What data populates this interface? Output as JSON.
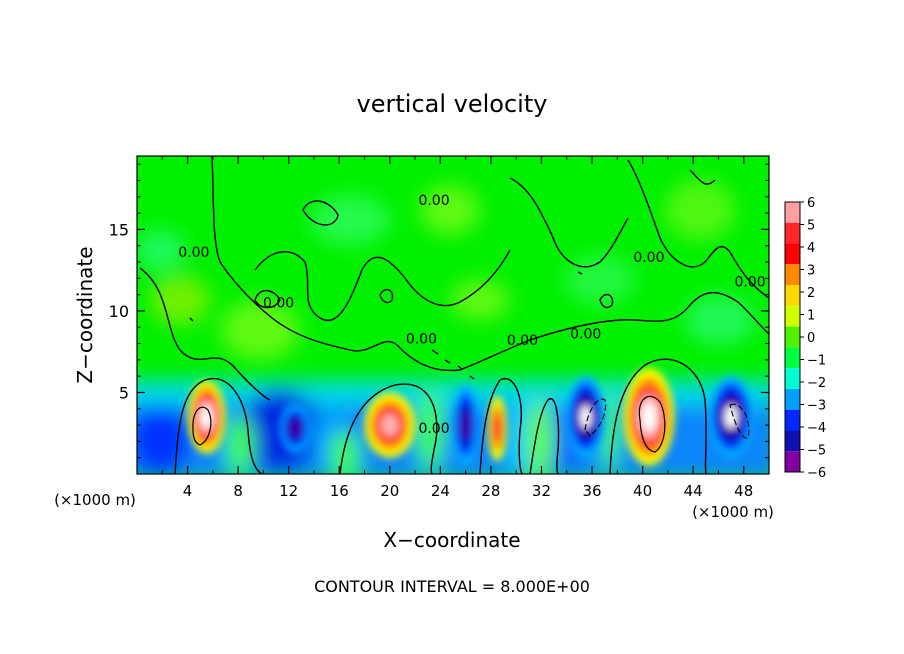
{
  "chart_data": {
    "type": "heatmap",
    "title": "vertical velocity",
    "xlabel": "X−coordinate",
    "ylabel": "Z−coordinate",
    "x_unit_left": "(×1000 m)",
    "x_unit_right": "(×1000 m)",
    "footer": "CONTOUR INTERVAL = 8.000E+00",
    "xlim": [
      0,
      50
    ],
    "ylim": [
      0,
      19.5
    ],
    "x_ticks": [
      "4",
      "8",
      "12",
      "16",
      "20",
      "24",
      "28",
      "32",
      "36",
      "40",
      "44",
      "48"
    ],
    "x_tick_values": [
      4,
      8,
      12,
      16,
      20,
      24,
      28,
      32,
      36,
      40,
      44,
      48
    ],
    "y_ticks": [
      "5",
      "10",
      "15"
    ],
    "y_tick_values": [
      5,
      10,
      15
    ],
    "colorbar": {
      "min": -6,
      "max": 6,
      "labels": [
        "6",
        "5",
        "4",
        "3",
        "2",
        "1",
        "0",
        "−1",
        "−2",
        "−3",
        "−4",
        "−5",
        "−6"
      ],
      "colors": [
        "#ffa0a0",
        "#ff2828",
        "#ff0000",
        "#ff8c00",
        "#ffd700",
        "#d0ff00",
        "#50f000",
        "#00ff40",
        "#00ffd0",
        "#00a0ff",
        "#0028ff",
        "#1010b0",
        "#8000a0"
      ]
    },
    "contour_labels": [
      {
        "text": "0.00",
        "x": 4.5,
        "y": 13.3
      },
      {
        "text": "0.00",
        "x": 11.2,
        "y": 10.2
      },
      {
        "text": "0.00",
        "x": 23.5,
        "y": 16.5
      },
      {
        "text": "0.00",
        "x": 22.5,
        "y": 8.0
      },
      {
        "text": "0.00",
        "x": 30.5,
        "y": 7.9
      },
      {
        "text": "0.00",
        "x": 35.5,
        "y": 8.3
      },
      {
        "text": "0.00",
        "x": 40.5,
        "y": 13.0
      },
      {
        "text": "0.00",
        "x": 48.5,
        "y": 11.5
      },
      {
        "text": "0.00",
        "x": 23.5,
        "y": 2.5
      }
    ],
    "cells": [
      {
        "x": 5.5,
        "z": 3.5,
        "w": 3.0,
        "h": 4.5,
        "value": 6
      },
      {
        "x": 12.5,
        "z": 2.8,
        "w": 2.5,
        "h": 3.0,
        "value": -5
      },
      {
        "x": 20.0,
        "z": 3.0,
        "w": 4.0,
        "h": 4.0,
        "value": 5
      },
      {
        "x": 26.0,
        "z": 3.0,
        "w": 2.0,
        "h": 5.0,
        "value": -5
      },
      {
        "x": 28.5,
        "z": 2.8,
        "w": 1.5,
        "h": 4.0,
        "value": 4
      },
      {
        "x": 35.5,
        "z": 3.5,
        "w": 3.0,
        "h": 5.0,
        "value": -6
      },
      {
        "x": 40.5,
        "z": 3.5,
        "w": 4.0,
        "h": 6.0,
        "value": 6
      },
      {
        "x": 47.0,
        "z": 3.5,
        "w": 3.5,
        "h": 5.0,
        "value": -6
      }
    ]
  }
}
